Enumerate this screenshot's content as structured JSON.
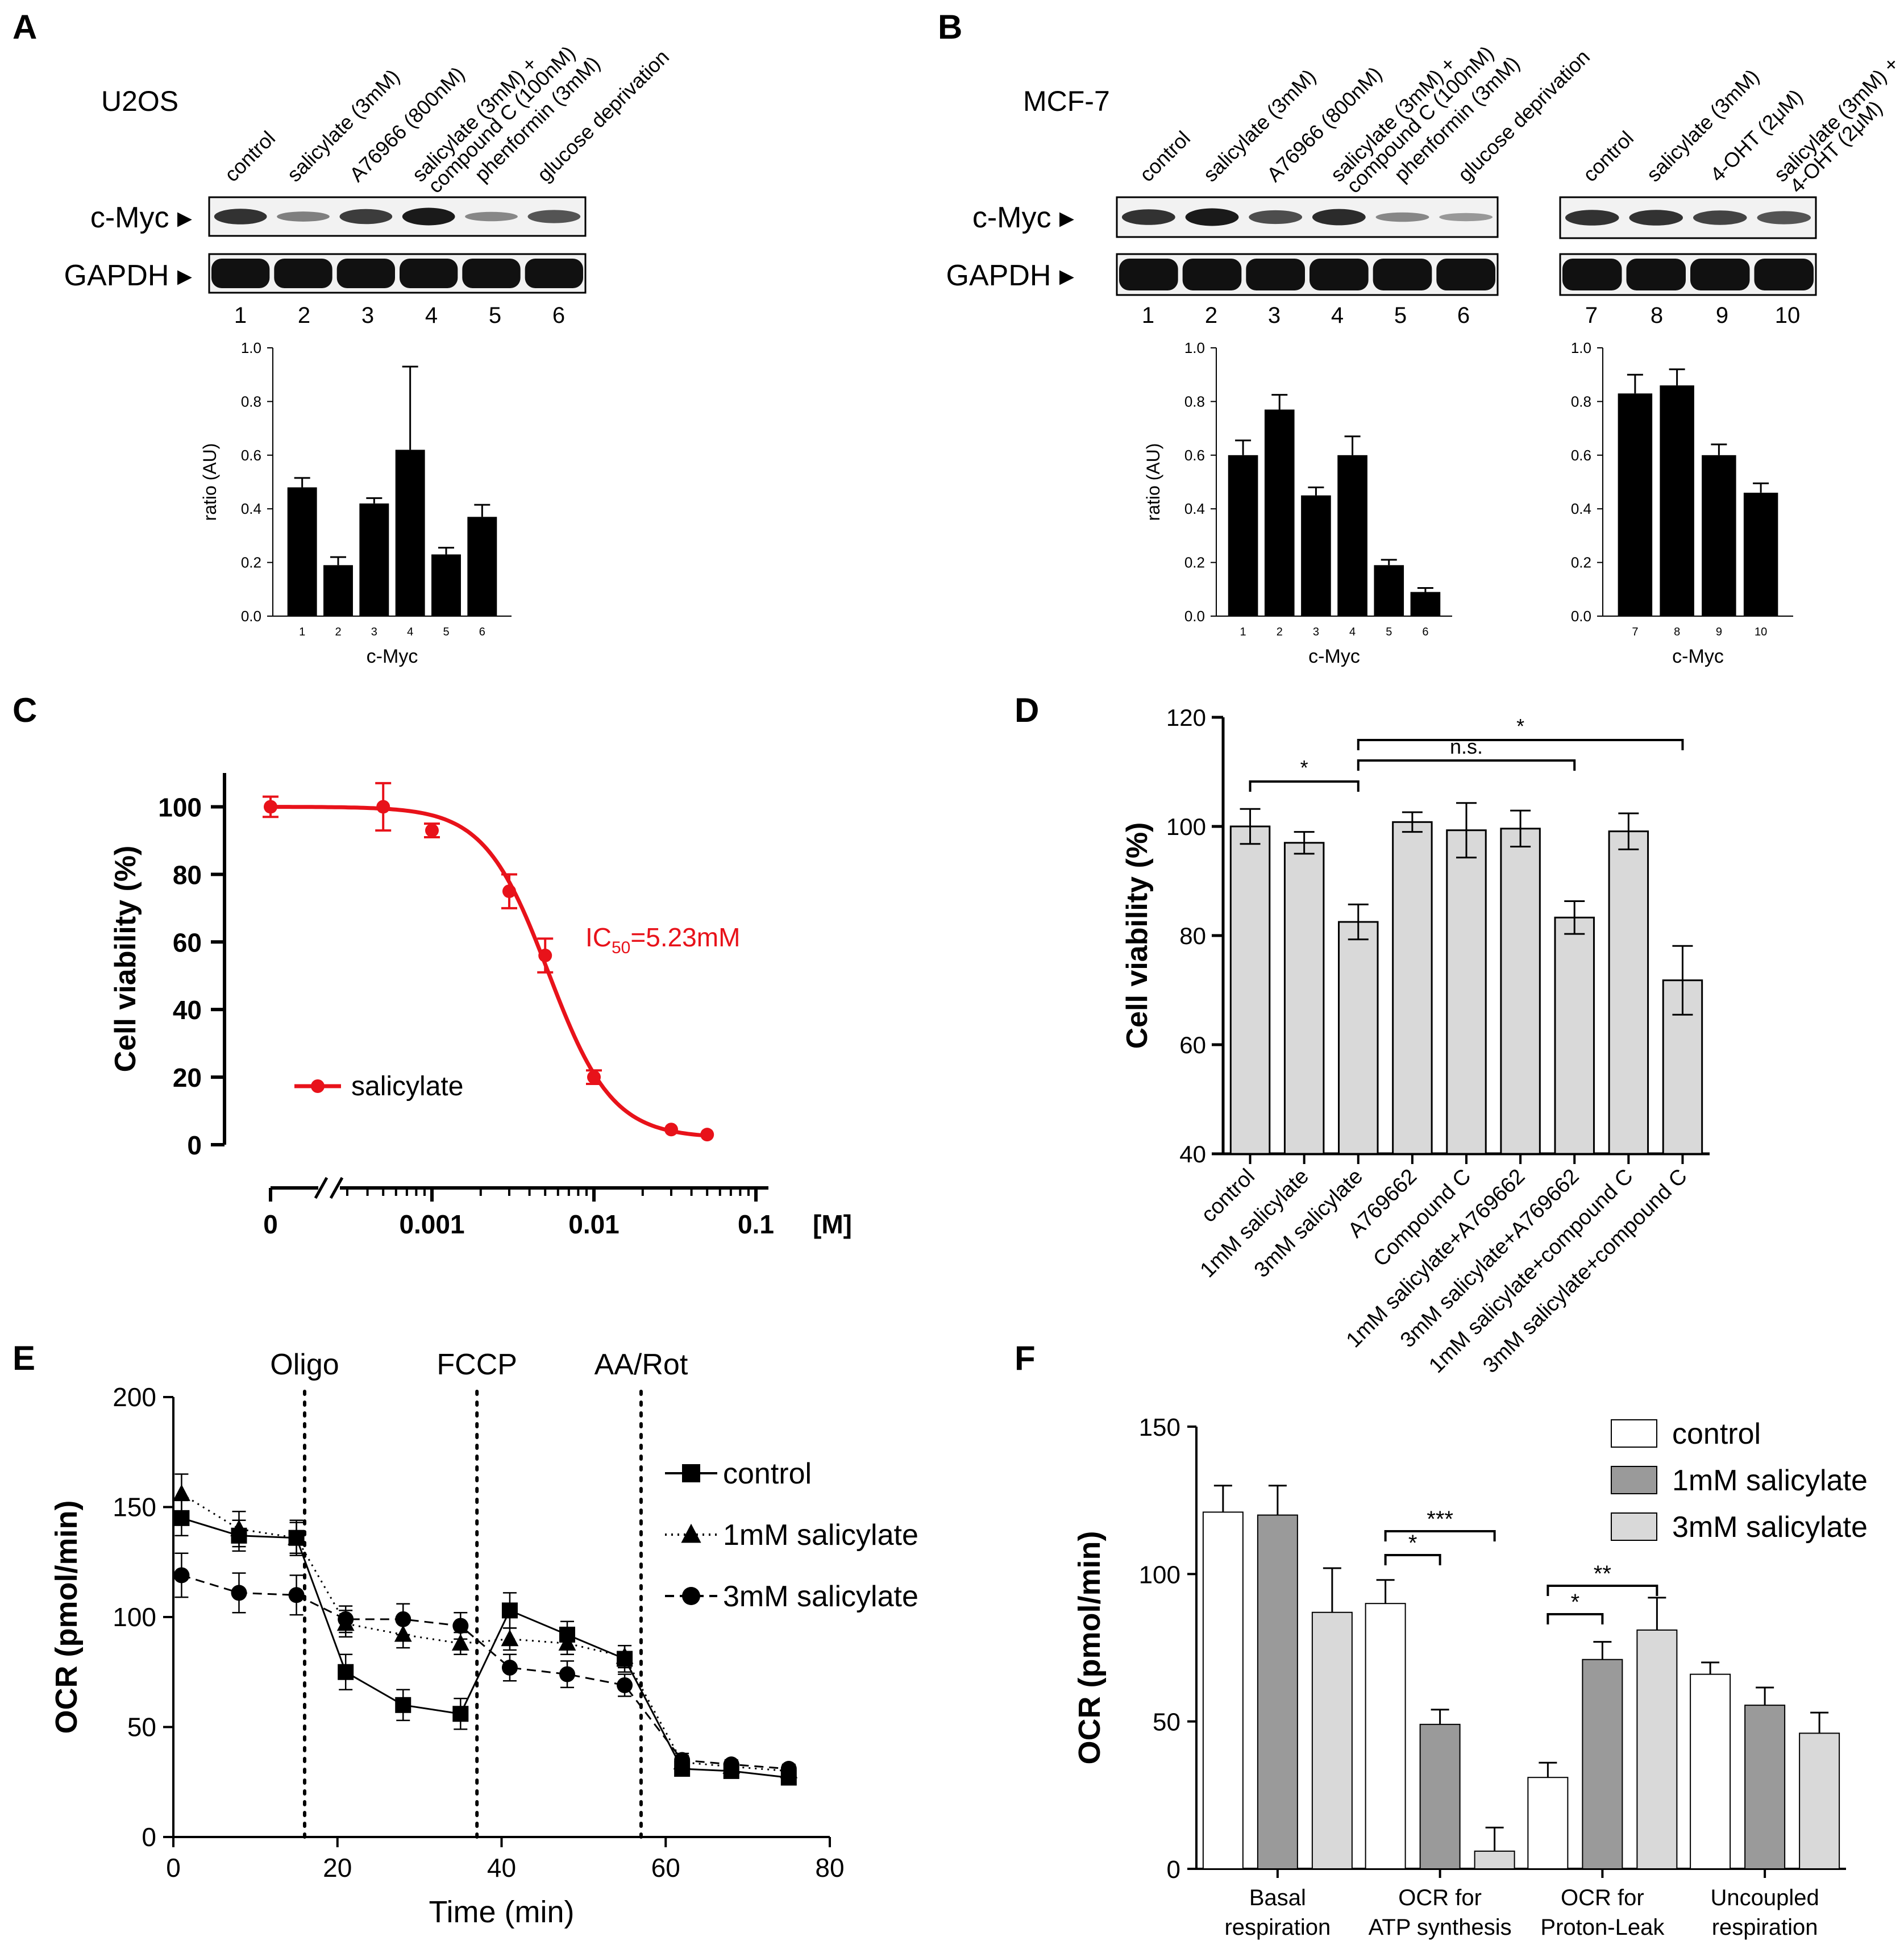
{
  "panel_labels": [
    "A",
    "B",
    "C",
    "D",
    "E",
    "F"
  ],
  "colors": {
    "black": "#000000",
    "red": "#e8121a",
    "lightgray": "#d9d9d9",
    "darkgray": "#9a9a9a",
    "white": "#ffffff"
  },
  "panel_a": {
    "cell_line": "U2OS",
    "lane_labels": [
      "control",
      "salicylate (3mM)",
      "A76966 (800nM)",
      "salicylate (3mM) +",
      "compound C (100nM)",
      "phenformin (3mM)",
      "glucose deprivation"
    ],
    "blot_labels": [
      "c-Myc ▸",
      "GAPDH ▸"
    ],
    "lane_numbers": [
      "1",
      "2",
      "3",
      "4",
      "5",
      "6"
    ],
    "cmyc_bands": [
      0.8,
      0.35,
      0.75,
      0.95,
      0.3,
      0.6
    ],
    "gapdh_bands": [
      1,
      1,
      1,
      1,
      1,
      1
    ]
  },
  "panel_b": {
    "cell_line": "MCF-7",
    "lane_labels_1": [
      "control",
      "salicylate (3mM)",
      "A76966 (800nM)",
      "salicylate (3mM) +",
      "compound C (100nM)",
      "phenformin (3mM)",
      "glucose deprivation"
    ],
    "lane_labels_2": [
      "control",
      "salicylate (3mM)",
      "4-OHT (2μM)",
      "salicylate (3mM) +",
      "4-OHT (2μM)"
    ],
    "blot_labels": [
      "c-Myc ▸",
      "GAPDH ▸"
    ],
    "lane_numbers_1": [
      "1",
      "2",
      "3",
      "4",
      "5",
      "6"
    ],
    "lane_numbers_2": [
      "7",
      "8",
      "9",
      "10"
    ],
    "cmyc_bands_1": [
      0.8,
      0.95,
      0.65,
      0.85,
      0.3,
      0.2
    ],
    "cmyc_bands_2": [
      0.8,
      0.8,
      0.7,
      0.6
    ],
    "gapdh_bands_1": [
      1,
      1,
      1,
      1,
      1,
      1
    ],
    "gapdh_bands_2": [
      1,
      1,
      1,
      1
    ]
  },
  "chart_data": [
    {
      "id": "A-bar",
      "type": "bar",
      "categories": [
        "1",
        "2",
        "3",
        "4",
        "5",
        "6"
      ],
      "values": [
        0.48,
        0.19,
        0.42,
        0.62,
        0.23,
        0.37
      ],
      "errors": [
        0.035,
        0.03,
        0.02,
        0.31,
        0.025,
        0.045
      ],
      "ylabel": "ratio (AU)",
      "xlabel": "c-Myc",
      "ylim": [
        0,
        1.0
      ],
      "yticks": [
        "0.0",
        "0.2",
        "0.4",
        "0.6",
        "0.8",
        "1.0"
      ]
    },
    {
      "id": "B-bar-1",
      "type": "bar",
      "categories": [
        "1",
        "2",
        "3",
        "4",
        "5",
        "6"
      ],
      "values": [
        0.6,
        0.77,
        0.45,
        0.6,
        0.19,
        0.09
      ],
      "errors": [
        0.055,
        0.055,
        0.03,
        0.07,
        0.02,
        0.015
      ],
      "ylabel": "ratio (AU)",
      "xlabel": "c-Myc",
      "ylim": [
        0,
        1.0
      ],
      "yticks": [
        "0.0",
        "0.2",
        "0.4",
        "0.6",
        "0.8",
        "1.0"
      ]
    },
    {
      "id": "B-bar-2",
      "type": "bar",
      "categories": [
        "7",
        "8",
        "9",
        "10"
      ],
      "values": [
        0.83,
        0.86,
        0.6,
        0.46
      ],
      "errors": [
        0.07,
        0.06,
        0.04,
        0.035
      ],
      "xlabel": "c-Myc",
      "ylim": [
        0,
        1.0
      ],
      "yticks": [
        "0.0",
        "0.2",
        "0.4",
        "0.6",
        "0.8",
        "1.0"
      ]
    },
    {
      "id": "C",
      "type": "line",
      "series": [
        {
          "name": "salicylate",
          "x_labels": [
            "0",
            "0.0005",
            "0.001",
            "0.003",
            "0.005",
            "0.01",
            "0.03",
            "0.05"
          ],
          "x": [
            0,
            0.0005,
            0.001,
            0.003,
            0.005,
            0.01,
            0.03,
            0.05
          ],
          "y": [
            100,
            100,
            93,
            75,
            56,
            20,
            4.5,
            3
          ],
          "errors": [
            3,
            7,
            2,
            5,
            5,
            2,
            0,
            0
          ]
        }
      ],
      "annotation": "IC",
      "annotation_sub": "50",
      "annotation_rest": "=5.23mM",
      "ylabel": "Cell viability (%)",
      "xlabel": "[M]",
      "xticks": [
        "0",
        "0.001",
        "0.01",
        "0.1"
      ],
      "yticks": [
        "0",
        "20",
        "40",
        "60",
        "80",
        "100"
      ],
      "ylim": [
        0,
        110
      ],
      "xscale": "log"
    },
    {
      "id": "D",
      "type": "bar",
      "categories": [
        "control",
        "1mM salicylate",
        "3mM salicylate",
        "A769662",
        "Compound C",
        "1mM salicylate+A769662",
        "3mM salicylate+A769662",
        "1mM salicylate+compound C",
        "3mM salicylate+compound C"
      ],
      "values": [
        100,
        97,
        82.5,
        100.8,
        99.3,
        99.6,
        83.3,
        99.1,
        71.8
      ],
      "errors": [
        3.2,
        2,
        3.2,
        1.8,
        5,
        3.3,
        3,
        3.3,
        6.3
      ],
      "ylabel": "Cell viability (%)",
      "ylim": [
        40,
        120
      ],
      "yticks": [
        "40",
        "60",
        "80",
        "100",
        "120"
      ],
      "significance": [
        {
          "from": 0,
          "to": 2,
          "label": "*"
        },
        {
          "from": 2,
          "to": 6,
          "label": "n.s."
        },
        {
          "from": 2,
          "to": 8,
          "label": "*"
        }
      ]
    },
    {
      "id": "E",
      "type": "line",
      "x": [
        1,
        8,
        15,
        21,
        28,
        35,
        41,
        48,
        55,
        62,
        68,
        75
      ],
      "series": [
        {
          "name": "control",
          "marker": "square",
          "line": "solid",
          "y": [
            145,
            137,
            136,
            75,
            60,
            56,
            103,
            92,
            81,
            31,
            30,
            27
          ],
          "errors": [
            8,
            7,
            7,
            8,
            7,
            7,
            8,
            6,
            6,
            3,
            2,
            2
          ]
        },
        {
          "name": "1mM salicylate",
          "marker": "triangle",
          "line": "dotted",
          "y": [
            156,
            140,
            136,
            97,
            92,
            88,
            90,
            88,
            82,
            34,
            32,
            30
          ],
          "errors": [
            9,
            8,
            8,
            6,
            6,
            5,
            5,
            5,
            5,
            3,
            2,
            2
          ]
        },
        {
          "name": "3mM salicylate",
          "marker": "circle",
          "line": "dashed",
          "y": [
            119,
            111,
            110,
            99,
            99,
            96,
            77,
            74,
            69,
            35,
            33,
            31
          ],
          "errors": [
            10,
            9,
            9,
            6,
            7,
            6,
            6,
            6,
            5,
            3,
            2,
            2
          ]
        }
      ],
      "vlines": [
        {
          "x": 16,
          "label": "Oligo"
        },
        {
          "x": 37,
          "label": "FCCP"
        },
        {
          "x": 57,
          "label": "AA/Rot"
        }
      ],
      "xlabel": "Time (min)",
      "ylabel": "OCR (pmol/min)",
      "xlim": [
        0,
        80
      ],
      "ylim": [
        0,
        200
      ],
      "xticks": [
        "0",
        "20",
        "40",
        "60",
        "80"
      ],
      "yticks": [
        "0",
        "50",
        "100",
        "150",
        "200"
      ]
    },
    {
      "id": "F",
      "type": "bar",
      "categories": [
        "Basal respiration",
        "OCR for ATP synthesis",
        "OCR for Proton-Leak",
        "Uncoupled respiration"
      ],
      "category_lines": [
        [
          "Basal",
          "respiration"
        ],
        [
          "OCR for",
          "ATP synthesis"
        ],
        [
          "OCR for",
          "Proton-Leak"
        ],
        [
          "Uncoupled",
          "respiration"
        ]
      ],
      "series": [
        {
          "name": "control",
          "values": [
            121,
            90,
            31,
            66
          ],
          "errors": [
            9,
            8,
            5,
            4
          ]
        },
        {
          "name": "1mM salicylate",
          "values": [
            120,
            49,
            71,
            55.5
          ],
          "errors": [
            10,
            5,
            6,
            6
          ]
        },
        {
          "name": "3mM salicylate",
          "values": [
            87,
            6,
            81,
            46
          ],
          "errors": [
            15,
            8,
            11,
            7
          ]
        }
      ],
      "ylabel": "OCR (pmol/min)",
      "ylim": [
        0,
        150
      ],
      "yticks": [
        "0",
        "50",
        "100",
        "150"
      ],
      "significance": [
        {
          "group": 1,
          "from": 0,
          "to": 1,
          "label": "*"
        },
        {
          "group": 1,
          "from": 0,
          "to": 2,
          "label": "***"
        },
        {
          "group": 2,
          "from": 0,
          "to": 1,
          "label": "*"
        },
        {
          "group": 2,
          "from": 0,
          "to": 2,
          "label": "**"
        }
      ]
    }
  ]
}
